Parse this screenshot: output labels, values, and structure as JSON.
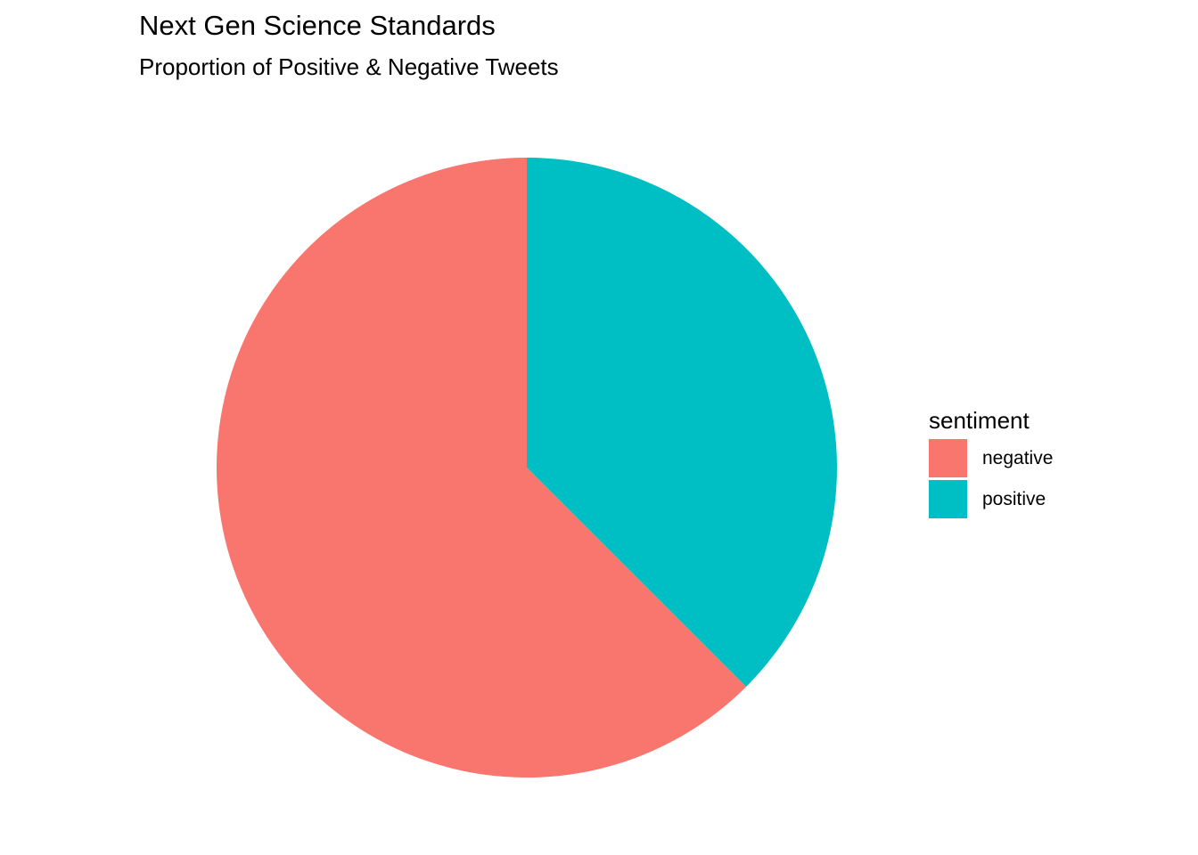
{
  "chart_data": {
    "type": "pie",
    "title": "Next Gen Science Standards",
    "subtitle": "Proportion of Positive & Negative Tweets",
    "legend_title": "sentiment",
    "legend_position": "right",
    "categories": [
      "negative",
      "positive"
    ],
    "values": [
      0.625,
      0.375
    ],
    "colors": [
      "#F8766D",
      "#00BFC4"
    ],
    "start_angle": "12 o'clock",
    "direction": "clockwise",
    "draw_order": [
      "positive",
      "negative"
    ],
    "grid": false
  }
}
